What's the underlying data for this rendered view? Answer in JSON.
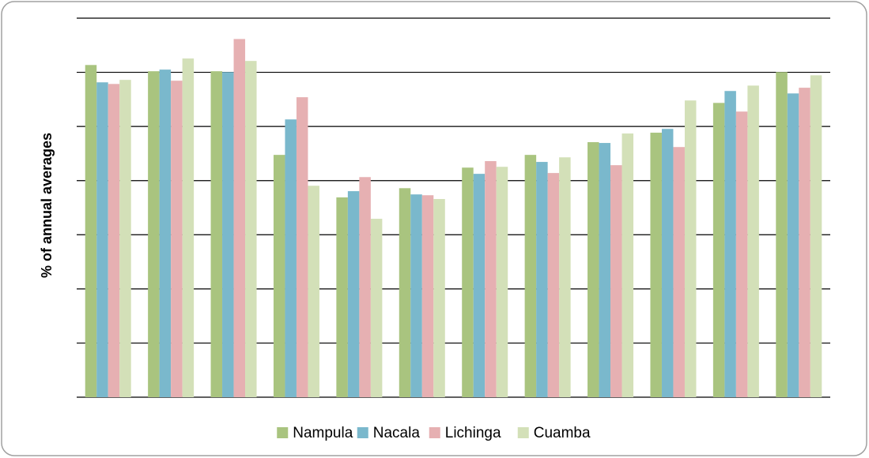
{
  "chart_data": {
    "type": "bar",
    "y_label": "% of annual averages",
    "categories": [
      null,
      null,
      null,
      null,
      null,
      null,
      null,
      null,
      null,
      null,
      null,
      null
    ],
    "series": [
      {
        "name": "Nampula",
        "color": "#a9c47f",
        "values": [
          122.7,
          120.4,
          120.4,
          89.5,
          73.8,
          77.2,
          84.8,
          89.5,
          94.2,
          97.7,
          108.7,
          120.1
        ]
      },
      {
        "name": "Nacala",
        "color": "#7ab8cc",
        "values": [
          116.3,
          121.0,
          120.1,
          102.6,
          76.1,
          74.9,
          82.5,
          86.9,
          93.9,
          99.1,
          113.1,
          112.2
        ]
      },
      {
        "name": "Lichinga",
        "color": "#e6b0b2",
        "values": [
          115.7,
          116.9,
          132.3,
          110.8,
          81.3,
          74.6,
          87.2,
          82.8,
          85.7,
          92.4,
          105.5,
          114.3
        ]
      },
      {
        "name": "Cuamba",
        "color": "#d3e0b8",
        "values": [
          117.2,
          125.1,
          124.2,
          78.1,
          65.9,
          73.2,
          85.1,
          88.6,
          97.4,
          109.6,
          115.1,
          118.9
        ]
      }
    ],
    "ylim": [
      0,
      140
    ],
    "yticks": [
      0,
      20,
      40,
      60,
      80,
      100,
      120,
      140
    ],
    "grid": true,
    "legend": "bottom"
  }
}
